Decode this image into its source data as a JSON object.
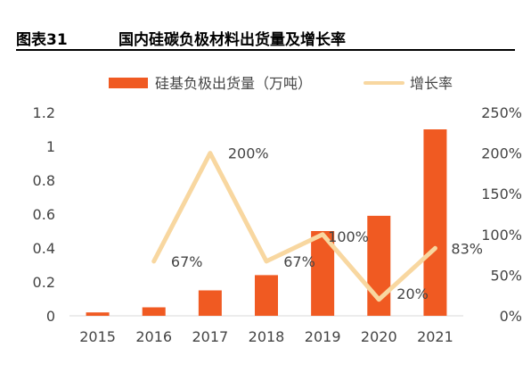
{
  "figure": {
    "number": "图表31",
    "title": "国内硅碳负极材料出货量及增长率"
  },
  "chart_data": {
    "type": "bar",
    "categories": [
      "2015",
      "2016",
      "2017",
      "2018",
      "2019",
      "2020",
      "2021"
    ],
    "series": [
      {
        "name": "硅基负极出货量（万吨）",
        "kind": "bar",
        "axis": "left",
        "color": "#F05A22",
        "values": [
          0.02,
          0.05,
          0.15,
          0.24,
          0.5,
          0.59,
          1.1
        ]
      },
      {
        "name": "增长率",
        "kind": "line",
        "axis": "right",
        "color": "#F8D7A0",
        "values": [
          null,
          67,
          200,
          67,
          100,
          20,
          83
        ],
        "labels": [
          "",
          "67%",
          "200%",
          "67%",
          "100%",
          "20%",
          "83%"
        ]
      }
    ],
    "y_left": {
      "min": 0,
      "max": 1.2,
      "ticks": [
        "0",
        "0.2",
        "0.4",
        "0.6",
        "0.8",
        "1",
        "1.2"
      ]
    },
    "y_right": {
      "min": 0,
      "max": 250,
      "ticks": [
        "0%",
        "50%",
        "100%",
        "150%",
        "200%",
        "250%"
      ]
    },
    "legend_position": "top",
    "grid": false
  }
}
